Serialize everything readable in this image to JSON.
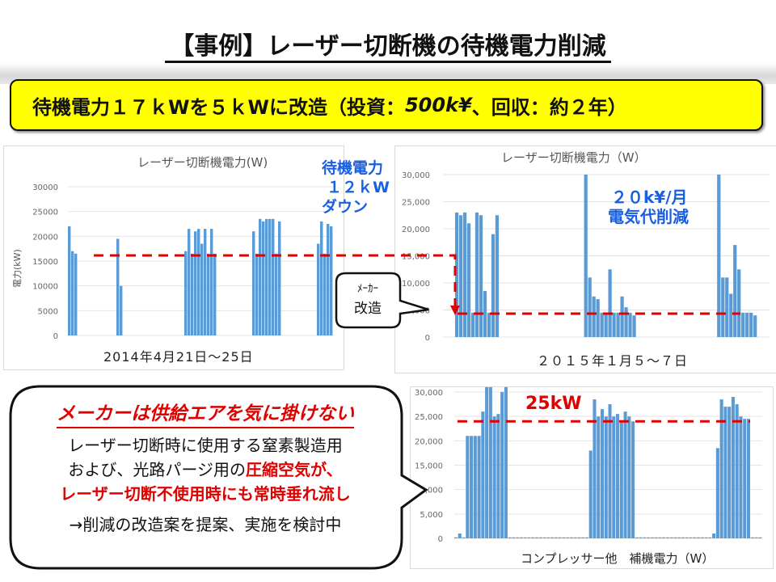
{
  "title": "【事例】レーザー切断機の待機電力削減",
  "banner": {
    "part1": "待機電力１７ｋWを５ｋWに改造（投資：",
    "investment": "500k¥",
    "part2": "、回収：約２年）"
  },
  "annotations": {
    "standby_down": [
      "待機電力",
      "１２ｋW",
      "ダウン"
    ],
    "saving": [
      "２０k¥/月",
      "電気代削減"
    ],
    "maker_mod": [
      "ﾒｰｶｰ",
      "改造"
    ],
    "level_25kw": "25kW"
  },
  "callout": {
    "heading": "メーカーは供給エアを気に掛けない",
    "line1": "レーザー切断時に使用する窒素製造用",
    "line2a": "および、光路パージ用の",
    "line2b": "圧縮空気が、",
    "line3": "レーザー切断不使用時にも常時垂れ流し",
    "line4": "→削減の改造案を提案、実施を検討中"
  },
  "colors": {
    "bar": "#5b9bd5",
    "accent_red": "#e00000",
    "accent_blue": "#1a5fe0",
    "banner": "#ffff00"
  },
  "chart_data": [
    {
      "type": "bar",
      "title": "レーザー切断機電力(W)",
      "xlabel": "2014年4月21日～25日",
      "ylabel": "電力(kW)",
      "ylim": [
        0,
        30000
      ],
      "yticks": [
        "0",
        "5000",
        "10000",
        "15000",
        "20000",
        "25000",
        "30000"
      ],
      "grid": true,
      "values": [
        22000,
        17000,
        16500,
        0,
        0,
        0,
        0,
        0,
        0,
        0,
        0,
        0,
        0,
        0,
        0,
        19500,
        10000,
        0,
        0,
        0,
        0,
        0,
        0,
        0,
        0,
        0,
        0,
        0,
        0,
        0,
        0,
        0,
        0,
        0,
        0,
        0,
        17000,
        21500,
        16500,
        21000,
        21500,
        18500,
        21500,
        16500,
        21500,
        16500,
        0,
        0,
        0,
        0,
        0,
        0,
        0,
        0,
        0,
        0,
        0,
        21000,
        16500,
        23500,
        23000,
        23500,
        23500,
        23500,
        16500,
        23000,
        0,
        0,
        0,
        0,
        0,
        0,
        0,
        0,
        0,
        0,
        0,
        18500,
        23000,
        16500,
        22500,
        22000
      ]
    },
    {
      "type": "bar",
      "title": "レーザー切断機電力（W）",
      "xlabel": "２０１５年１月５～７日",
      "ylim": [
        0,
        30000
      ],
      "yticks": [
        "0",
        "5,000",
        "10,000",
        "15,000",
        "20,000",
        "25,000",
        "30,000"
      ],
      "grid": true,
      "values": [
        0,
        0,
        0,
        23000,
        22500,
        23000,
        21000,
        4500,
        23000,
        22500,
        8500,
        4500,
        19000,
        22500,
        0,
        0,
        0,
        0,
        0,
        0,
        0,
        0,
        0,
        0,
        0,
        0,
        0,
        0,
        0,
        0,
        0,
        0,
        0,
        0,
        0,
        30000,
        11000,
        7500,
        7000,
        4500,
        4500,
        12500,
        4500,
        4500,
        7500,
        5500,
        4500,
        4000,
        0,
        0,
        0,
        0,
        0,
        0,
        0,
        0,
        0,
        0,
        0,
        0,
        0,
        0,
        0,
        0,
        0,
        0,
        0,
        0,
        30000,
        11000,
        11000,
        8000,
        17000,
        12500,
        4500,
        4500,
        4500,
        4000,
        0,
        0,
        0
      ]
    },
    {
      "type": "bar",
      "title": "コンプレッサー他　補機電力（W）",
      "ylim": [
        0,
        30000
      ],
      "yticks": [
        "0",
        "5,000",
        "10,000",
        "15,000",
        "20,000",
        "25,000",
        "30,000"
      ],
      "grid": true,
      "reference_line": 24000,
      "values": [
        200,
        1000,
        200,
        21000,
        21000,
        21000,
        21000,
        26000,
        31000,
        31000,
        25000,
        25500,
        30000,
        31000,
        200,
        200,
        200,
        200,
        200,
        200,
        200,
        200,
        200,
        200,
        200,
        200,
        200,
        200,
        200,
        200,
        200,
        200,
        200,
        200,
        200,
        18000,
        28500,
        25000,
        26500,
        25000,
        27500,
        25000,
        25500,
        24000,
        26000,
        25000,
        24000,
        200,
        200,
        200,
        200,
        200,
        200,
        200,
        200,
        200,
        200,
        200,
        200,
        200,
        200,
        200,
        200,
        200,
        200,
        200,
        200,
        1000,
        18500,
        28500,
        27000,
        27000,
        29000,
        27500,
        25000,
        24500,
        24500,
        200,
        200,
        200
      ]
    }
  ]
}
